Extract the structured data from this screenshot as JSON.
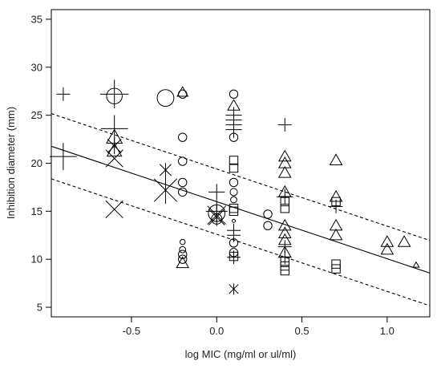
{
  "chart_data": {
    "type": "scatter",
    "xlabel": "log MIC (mg/ml or ul/ml)",
    "ylabel": "Inhibition diameter (mm)",
    "xlim": [
      -0.97,
      1.25
    ],
    "ylim": [
      4,
      36
    ],
    "x_ticks": [
      -0.5,
      0.0,
      0.5,
      1.0
    ],
    "x_tick_labels": [
      "-0.5",
      "0.0",
      "0.5",
      "1.0"
    ],
    "y_ticks": [
      5,
      10,
      15,
      20,
      25,
      30,
      35
    ],
    "y_tick_labels": [
      "5",
      "10",
      "15",
      "20",
      "25",
      "30",
      "35"
    ],
    "grid": false,
    "color": "#000000",
    "regression_line": {
      "slope": -5.95,
      "intercept": 16.0
    },
    "prediction_band": {
      "offset": 3.4
    },
    "points": [
      {
        "x": -0.9,
        "y": 27.2,
        "shape": "plus",
        "size": 1.0
      },
      {
        "x": -0.9,
        "y": 20.7,
        "shape": "plus",
        "size": 2.0
      },
      {
        "x": -0.6,
        "y": 27.2,
        "shape": "plus",
        "size": 2.1
      },
      {
        "x": -0.6,
        "y": 27.0,
        "shape": "circle",
        "size": 1.5
      },
      {
        "x": -0.6,
        "y": 23.6,
        "shape": "plus",
        "size": 2.0
      },
      {
        "x": -0.6,
        "y": 22.7,
        "shape": "triangle",
        "size": 1.3
      },
      {
        "x": -0.6,
        "y": 21.8,
        "shape": "star",
        "size": 1.2
      },
      {
        "x": -0.6,
        "y": 21.3,
        "shape": "triangle",
        "size": 1.2
      },
      {
        "x": -0.6,
        "y": 20.5,
        "shape": "cross",
        "size": 1.5
      },
      {
        "x": -0.6,
        "y": 15.2,
        "shape": "cross",
        "size": 1.5
      },
      {
        "x": -0.3,
        "y": 26.8,
        "shape": "circle",
        "size": 1.6
      },
      {
        "x": -0.3,
        "y": 19.3,
        "shape": "star",
        "size": 1.0
      },
      {
        "x": -0.3,
        "y": 17.2,
        "shape": "star",
        "size": 2.0
      },
      {
        "x": -0.2,
        "y": 27.4,
        "shape": "triangle",
        "size": 0.9
      },
      {
        "x": -0.2,
        "y": 27.2,
        "shape": "circle",
        "size": 0.8
      },
      {
        "x": -0.2,
        "y": 22.7,
        "shape": "circle",
        "size": 0.8
      },
      {
        "x": -0.2,
        "y": 20.2,
        "shape": "circle",
        "size": 0.8
      },
      {
        "x": -0.2,
        "y": 18.0,
        "shape": "circle",
        "size": 0.8
      },
      {
        "x": -0.2,
        "y": 17.0,
        "shape": "circle",
        "size": 0.8
      },
      {
        "x": -0.2,
        "y": 11.8,
        "shape": "circle",
        "size": 0.5
      },
      {
        "x": -0.2,
        "y": 11.0,
        "shape": "circle",
        "size": 0.6
      },
      {
        "x": -0.2,
        "y": 10.5,
        "shape": "circle",
        "size": 0.8
      },
      {
        "x": -0.2,
        "y": 10.0,
        "shape": "circle",
        "size": 0.8
      },
      {
        "x": -0.2,
        "y": 9.6,
        "shape": "triangle",
        "size": 1.0
      },
      {
        "x": 0.0,
        "y": 17.0,
        "shape": "plus",
        "size": 1.2
      },
      {
        "x": 0.0,
        "y": 15.0,
        "shape": "plus",
        "size": 1.6
      },
      {
        "x": 0.0,
        "y": 14.8,
        "shape": "circle",
        "size": 1.6
      },
      {
        "x": 0.0,
        "y": 14.6,
        "shape": "star",
        "size": 1.6
      },
      {
        "x": 0.0,
        "y": 14.4,
        "shape": "cross",
        "size": 1.4
      },
      {
        "x": 0.0,
        "y": 14.2,
        "shape": "circle",
        "size": 1.0
      },
      {
        "x": 0.1,
        "y": 27.2,
        "shape": "circle",
        "size": 0.8
      },
      {
        "x": 0.1,
        "y": 26.0,
        "shape": "triangle",
        "size": 1.0
      },
      {
        "x": 0.1,
        "y": 25.0,
        "shape": "plus",
        "size": 1.2
      },
      {
        "x": 0.1,
        "y": 24.5,
        "shape": "plus",
        "size": 1.2
      },
      {
        "x": 0.1,
        "y": 24.0,
        "shape": "plus",
        "size": 1.2
      },
      {
        "x": 0.1,
        "y": 23.5,
        "shape": "plus",
        "size": 1.2
      },
      {
        "x": 0.1,
        "y": 22.7,
        "shape": "circle",
        "size": 0.8
      },
      {
        "x": 0.1,
        "y": 20.3,
        "shape": "square",
        "size": 0.8
      },
      {
        "x": 0.1,
        "y": 19.5,
        "shape": "square",
        "size": 0.8
      },
      {
        "x": 0.1,
        "y": 18.0,
        "shape": "circle",
        "size": 0.8
      },
      {
        "x": 0.1,
        "y": 17.0,
        "shape": "circle",
        "size": 0.7
      },
      {
        "x": 0.1,
        "y": 16.2,
        "shape": "circle",
        "size": 0.6
      },
      {
        "x": 0.1,
        "y": 15.3,
        "shape": "square",
        "size": 0.8
      },
      {
        "x": 0.1,
        "y": 15.0,
        "shape": "square",
        "size": 0.8
      },
      {
        "x": 0.1,
        "y": 14.0,
        "shape": "circle",
        "size": 0.3
      },
      {
        "x": 0.1,
        "y": 13.0,
        "shape": "plus",
        "size": 1.0
      },
      {
        "x": 0.1,
        "y": 12.5,
        "shape": "plus",
        "size": 1.0
      },
      {
        "x": 0.1,
        "y": 11.7,
        "shape": "circle",
        "size": 0.8
      },
      {
        "x": 0.1,
        "y": 10.7,
        "shape": "circle",
        "size": 0.8
      },
      {
        "x": 0.1,
        "y": 10.3,
        "shape": "square",
        "size": 0.8
      },
      {
        "x": 0.1,
        "y": 10.2,
        "shape": "plus",
        "size": 1.0
      },
      {
        "x": 0.1,
        "y": 6.9,
        "shape": "star",
        "size": 0.8
      },
      {
        "x": 0.3,
        "y": 14.7,
        "shape": "circle",
        "size": 0.8
      },
      {
        "x": 0.3,
        "y": 13.5,
        "shape": "circle",
        "size": 0.8
      },
      {
        "x": 0.4,
        "y": 24.0,
        "shape": "plus",
        "size": 1.0
      },
      {
        "x": 0.4,
        "y": 20.7,
        "shape": "triangle",
        "size": 1.0
      },
      {
        "x": 0.4,
        "y": 20.0,
        "shape": "triangle",
        "size": 1.0
      },
      {
        "x": 0.4,
        "y": 19.0,
        "shape": "triangle",
        "size": 1.0
      },
      {
        "x": 0.4,
        "y": 17.0,
        "shape": "triangle",
        "size": 1.0
      },
      {
        "x": 0.4,
        "y": 16.5,
        "shape": "plus",
        "size": 1.2
      },
      {
        "x": 0.4,
        "y": 16.0,
        "shape": "square",
        "size": 0.8
      },
      {
        "x": 0.4,
        "y": 15.3,
        "shape": "square",
        "size": 0.8
      },
      {
        "x": 0.4,
        "y": 13.5,
        "shape": "triangle",
        "size": 1.0
      },
      {
        "x": 0.4,
        "y": 12.7,
        "shape": "triangle",
        "size": 1.0
      },
      {
        "x": 0.4,
        "y": 12.0,
        "shape": "triangle",
        "size": 1.0
      },
      {
        "x": 0.4,
        "y": 11.3,
        "shape": "plus",
        "size": 1.0
      },
      {
        "x": 0.4,
        "y": 10.7,
        "shape": "triangle",
        "size": 1.0
      },
      {
        "x": 0.4,
        "y": 10.2,
        "shape": "plus",
        "size": 1.0
      },
      {
        "x": 0.4,
        "y": 9.8,
        "shape": "square",
        "size": 0.8
      },
      {
        "x": 0.4,
        "y": 9.3,
        "shape": "square",
        "size": 0.8
      },
      {
        "x": 0.4,
        "y": 8.8,
        "shape": "square",
        "size": 0.8
      },
      {
        "x": 0.7,
        "y": 20.3,
        "shape": "triangle",
        "size": 1.0
      },
      {
        "x": 0.7,
        "y": 16.5,
        "shape": "triangle",
        "size": 1.0
      },
      {
        "x": 0.7,
        "y": 16.0,
        "shape": "square",
        "size": 0.8
      },
      {
        "x": 0.7,
        "y": 15.5,
        "shape": "plus",
        "size": 1.0
      },
      {
        "x": 0.7,
        "y": 13.5,
        "shape": "triangle",
        "size": 1.0
      },
      {
        "x": 0.7,
        "y": 12.5,
        "shape": "triangle",
        "size": 1.0
      },
      {
        "x": 0.7,
        "y": 9.5,
        "shape": "square",
        "size": 0.8
      },
      {
        "x": 0.7,
        "y": 9.0,
        "shape": "square",
        "size": 0.8
      },
      {
        "x": 1.0,
        "y": 11.8,
        "shape": "triangle",
        "size": 1.0
      },
      {
        "x": 1.0,
        "y": 11.0,
        "shape": "triangle",
        "size": 1.0
      },
      {
        "x": 1.1,
        "y": 11.8,
        "shape": "triangle",
        "size": 1.0
      },
      {
        "x": 1.17,
        "y": 9.4,
        "shape": "triangle",
        "size": 0.5
      }
    ]
  }
}
